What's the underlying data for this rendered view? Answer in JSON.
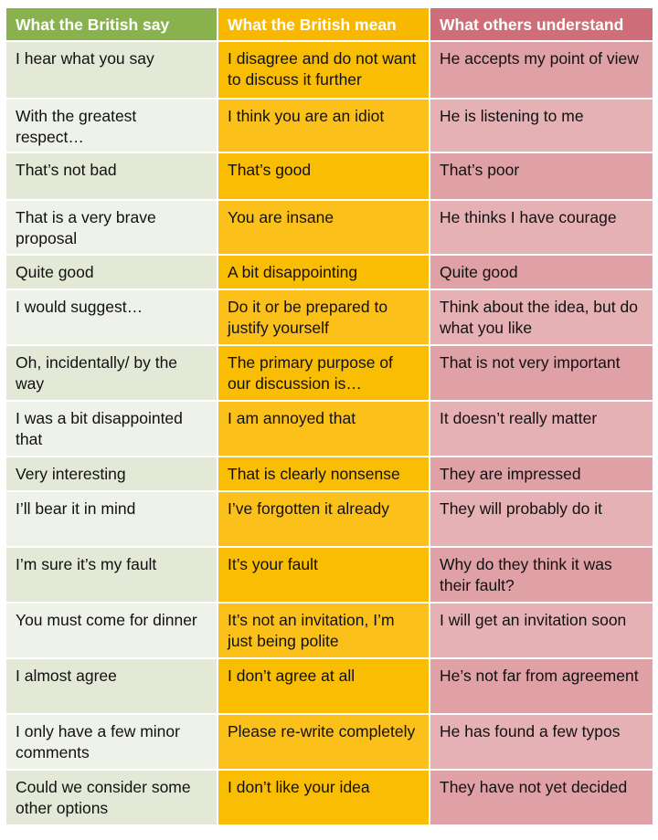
{
  "headers": [
    "What the British say",
    "What the British mean",
    "What others understand"
  ],
  "rows": [
    {
      "say": "I hear what you say",
      "mean": "I disagree and do not want to discuss it further",
      "understand": "He accepts my point of view"
    },
    {
      "say": "With the greatest respect…",
      "mean": "I think you are an idiot",
      "understand": "He is listening to me"
    },
    {
      "say": "That’s not bad",
      "mean": "That’s good",
      "understand": "That’s poor"
    },
    {
      "say": "That is a very brave proposal",
      "mean": "You are insane",
      "understand": "He thinks I have courage"
    },
    {
      "say": "Quite good",
      "mean": "A bit disappointing",
      "understand": "Quite good"
    },
    {
      "say": "I would suggest…",
      "mean": "Do it or be prepared to justify yourself",
      "understand": "Think about the idea, but do what you like"
    },
    {
      "say": "Oh, incidentally/ by the way",
      "mean": "The primary purpose of our discussion is…",
      "understand": "That is not very important"
    },
    {
      "say": "I was a bit disappointed that",
      "mean": "I am annoyed that",
      "understand": "It doesn’t really matter"
    },
    {
      "say": "Very interesting",
      "mean": "That is clearly nonsense",
      "understand": "They are impressed"
    },
    {
      "say": "I’ll bear it in mind",
      "mean": "I’ve forgotten it already",
      "understand": "They will probably do it"
    },
    {
      "say": "I’m sure it’s my fault",
      "mean": "It’s your fault",
      "understand": "Why do they think it was their fault?"
    },
    {
      "say": "You must come for dinner",
      "mean": "It’s not an invitation, I’m just being polite",
      "understand": "I will get an invitation soon"
    },
    {
      "say": "I almost agree",
      "mean": "I don’t agree at all",
      "understand": "He’s not far from agreement"
    },
    {
      "say": "I only have a few minor comments",
      "mean": "Please re-write completely",
      "understand": "He has found a few typos"
    },
    {
      "say": "Could we consider some other options",
      "mean": "I don’t like your idea",
      "understand": "They have not yet decided"
    }
  ],
  "colors": {
    "col1_header": "#89b24f",
    "col2_header": "#f8b800",
    "col3_header": "#cf6e78"
  }
}
